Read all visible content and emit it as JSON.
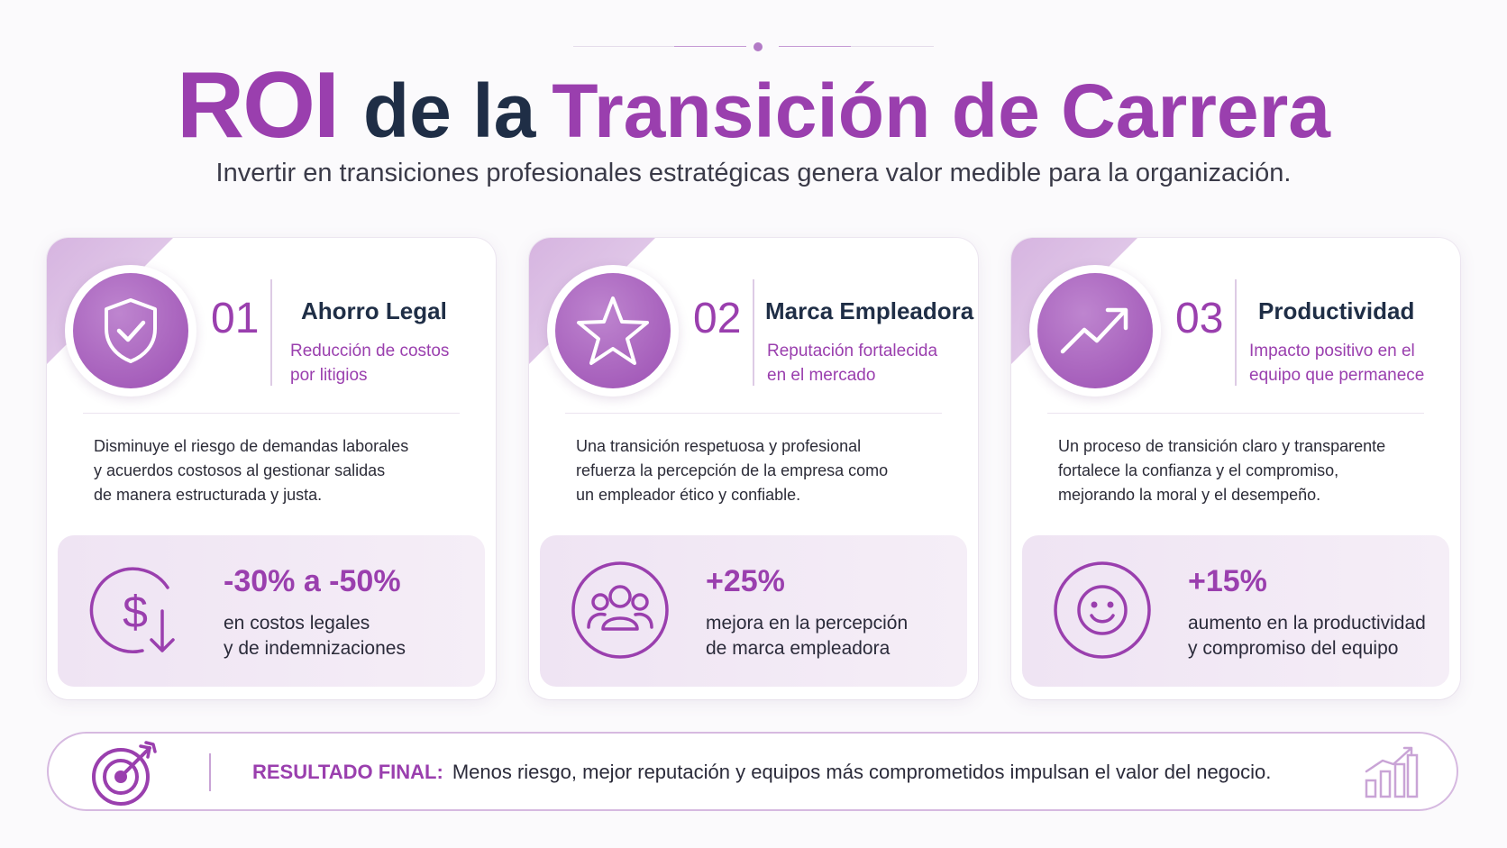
{
  "header": {
    "title_roi": "ROI",
    "title_mid": "de la",
    "title_accent": "Transición de Carrera",
    "subtitle": "Invertir en transiciones profesionales estratégicas genera valor medible para la organización."
  },
  "cards": [
    {
      "number": "01",
      "title": "Ahorro Legal",
      "subtitle_line1": "Reducción de costos",
      "subtitle_line2": "por litigios",
      "desc_line1": "Disminuye el riesgo de demandas laborales",
      "desc_line2": "y acuerdos costosos al gestionar salidas",
      "desc_line3": "de manera estructurada y justa.",
      "stat_value": "-30% a -50%",
      "stat_line1": "en costos legales",
      "stat_line2": "y de indemnizaciones",
      "icon": "shield-check-icon",
      "stat_icon": "dollar-down-icon"
    },
    {
      "number": "02",
      "title": "Marca Empleadora",
      "subtitle_line1": "Reputación fortalecida",
      "subtitle_line2": "en el mercado",
      "desc_line1": "Una transición respetuosa y profesional",
      "desc_line2": "refuerza la percepción de la empresa como",
      "desc_line3": "un empleador ético y confiable.",
      "stat_value": "+25%",
      "stat_line1": "mejora en la percepción",
      "stat_line2": "de marca empleadora",
      "icon": "star-icon",
      "stat_icon": "people-group-icon"
    },
    {
      "number": "03",
      "title": "Productividad",
      "subtitle_line1": "Impacto positivo en el",
      "subtitle_line2": "equipo que permanece",
      "desc_line1": "Un proceso de transición claro y transparente",
      "desc_line2": "fortalece la confianza y el compromiso,",
      "desc_line3": "mejorando la moral y el desempeño.",
      "stat_value": "+15%",
      "stat_line1": "aumento en la productividad",
      "stat_line2": "y compromiso del equipo",
      "icon": "trend-up-icon",
      "stat_icon": "smiley-icon"
    }
  ],
  "footer": {
    "label": "RESULTADO FINAL:",
    "text": "Menos riesgo, mejor reputación y equipos más comprometidos impulsan el valor del negocio.",
    "left_icon": "target-arrow-icon",
    "right_icon": "bar-chart-growth-icon"
  },
  "colors": {
    "accent": "#9a3fae",
    "navy": "#1f2e46",
    "stat_bg": "#efe4f3"
  }
}
